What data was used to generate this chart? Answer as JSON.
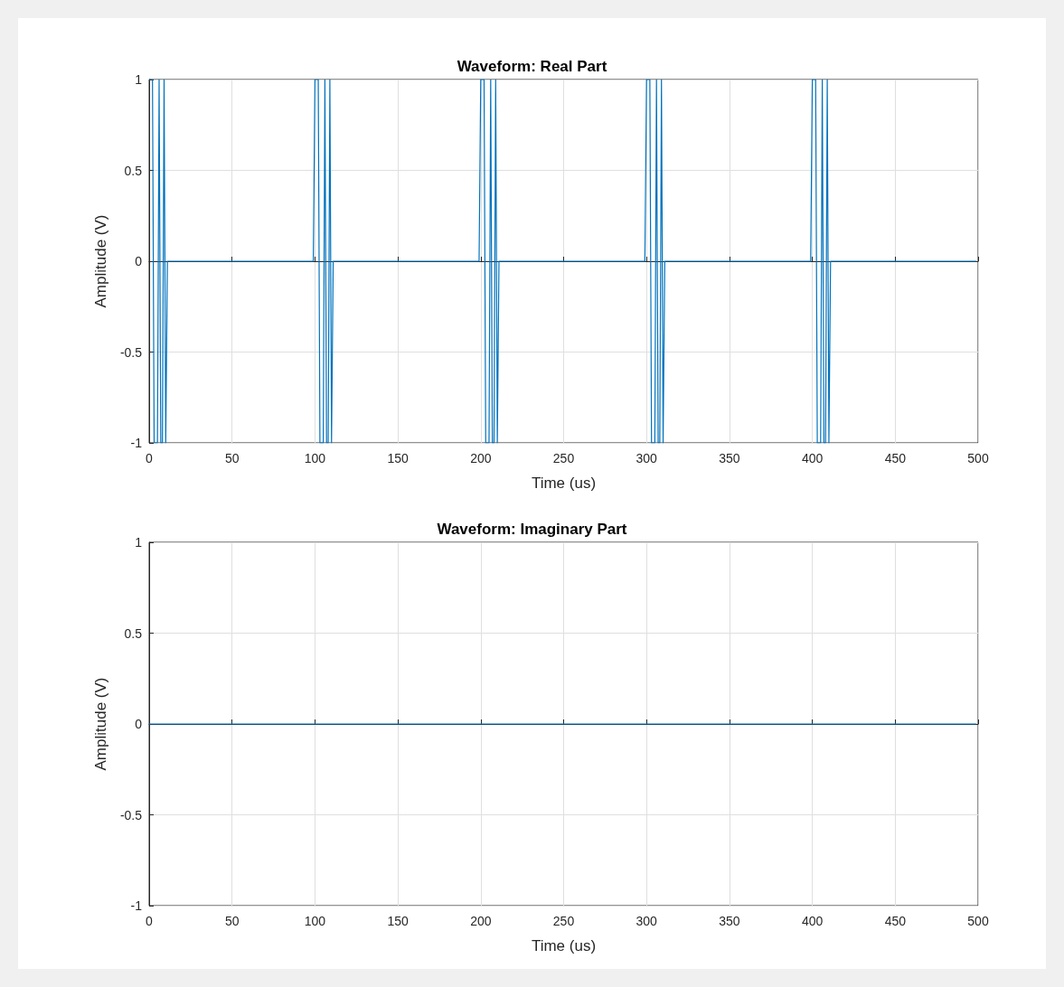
{
  "chart_data": [
    {
      "type": "line",
      "title": "Waveform: Real Part",
      "xlabel": "Time (us)",
      "ylabel": "Amplitude (V)",
      "x": [
        0,
        1,
        2,
        3,
        4,
        5,
        6,
        7,
        8,
        9,
        10,
        11,
        99,
        100,
        101,
        102,
        103,
        104,
        105,
        106,
        107,
        108,
        109,
        110,
        111,
        199,
        200,
        201,
        202,
        203,
        204,
        205,
        206,
        207,
        208,
        209,
        210,
        211,
        299,
        300,
        301,
        302,
        303,
        304,
        305,
        306,
        307,
        308,
        309,
        310,
        311,
        399,
        400,
        401,
        402,
        403,
        404,
        405,
        406,
        407,
        408,
        409,
        410,
        411,
        499
      ],
      "series": [
        {
          "color": "#0072bd",
          "values": [
            1,
            1,
            1,
            -1,
            -1,
            -1,
            1,
            -1,
            -1,
            1,
            -1,
            0,
            0,
            1,
            1,
            1,
            -1,
            -1,
            -1,
            1,
            -1,
            -1,
            1,
            -1,
            0,
            0,
            1,
            1,
            1,
            -1,
            -1,
            -1,
            1,
            -1,
            -1,
            1,
            -1,
            0,
            0,
            1,
            1,
            1,
            -1,
            -1,
            -1,
            1,
            -1,
            -1,
            1,
            -1,
            0,
            0,
            1,
            1,
            1,
            -1,
            -1,
            -1,
            1,
            -1,
            -1,
            1,
            -1,
            0,
            0
          ]
        }
      ],
      "xlim": [
        0,
        500
      ],
      "xticks": [
        0,
        50,
        100,
        150,
        200,
        250,
        300,
        350,
        400,
        450,
        500
      ],
      "ylim": [
        -1,
        1
      ],
      "yticks": [
        -1,
        -0.5,
        0,
        0.5,
        1
      ],
      "grid": true,
      "marker": "none",
      "line_style": "solid"
    },
    {
      "type": "line",
      "title": "Waveform: Imaginary Part",
      "xlabel": "Time (us)",
      "ylabel": "Amplitude (V)",
      "x": [
        0,
        499
      ],
      "series": [
        {
          "color": "#0072bd",
          "values": [
            0,
            0
          ]
        }
      ],
      "xlim": [
        0,
        500
      ],
      "xticks": [
        0,
        50,
        100,
        150,
        200,
        250,
        300,
        350,
        400,
        450,
        500
      ],
      "ylim": [
        -1,
        1
      ],
      "yticks": [
        -1,
        -0.5,
        0,
        0.5,
        1
      ],
      "grid": true,
      "marker": "none",
      "line_style": "solid"
    }
  ]
}
